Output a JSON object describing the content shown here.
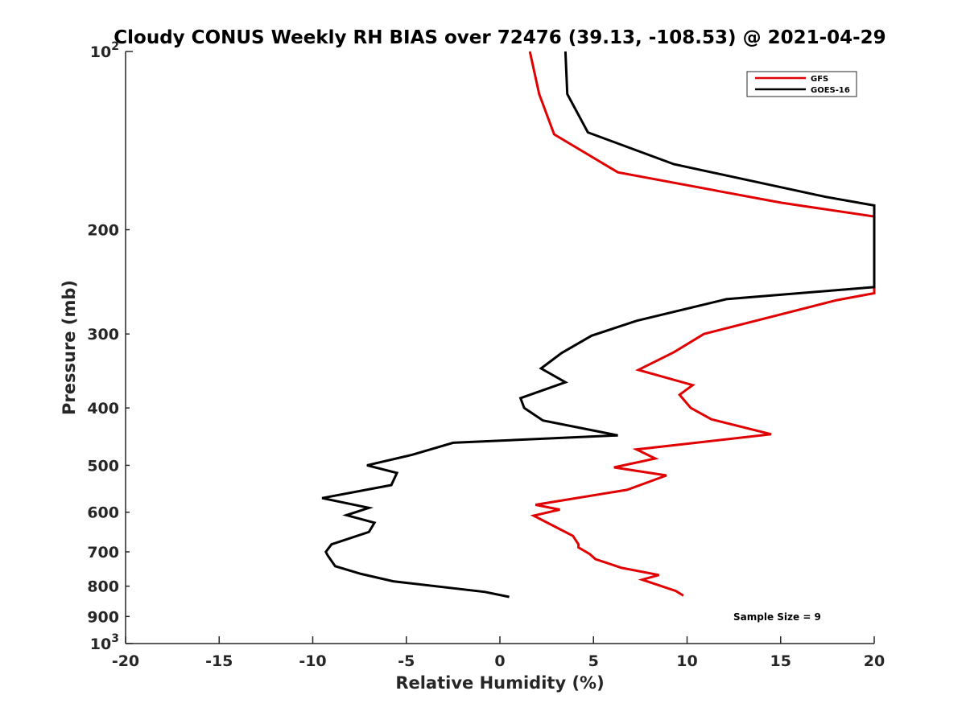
{
  "chart_data": {
    "type": "line",
    "title": "Cloudy CONUS Weekly RH BIAS over 72476 (39.13, -108.53) @ 2021-04-29",
    "xlabel": "Relative Humidity (%)",
    "ylabel": "Pressure (mb)",
    "xlim": [
      -20,
      20
    ],
    "ylim": [
      100,
      1000
    ],
    "y_scale": "log",
    "y_reversed": true,
    "grid": false,
    "legend_position": "top-right",
    "x_ticks": [
      "-20",
      "-15",
      "-10",
      "-5",
      "0",
      "5",
      "10",
      "15",
      "20"
    ],
    "y_ticks": [
      {
        "value": 100,
        "base": "10",
        "exp": "2"
      },
      {
        "value": 200,
        "label": "200"
      },
      {
        "value": 300,
        "label": "300"
      },
      {
        "value": 400,
        "label": "400"
      },
      {
        "value": 500,
        "label": "500"
      },
      {
        "value": 600,
        "label": "600"
      },
      {
        "value": 700,
        "label": "700"
      },
      {
        "value": 800,
        "label": "800"
      },
      {
        "value": 900,
        "label": "900"
      },
      {
        "value": 1000,
        "base": "10",
        "exp": "3"
      }
    ],
    "annotation": "Sample Size = 9",
    "series": [
      {
        "name": "GFS",
        "color": "#e00000",
        "points": [
          [
            1.6,
            100
          ],
          [
            2.1,
            118
          ],
          [
            2.9,
            138
          ],
          [
            6.3,
            160
          ],
          [
            15.0,
            180
          ],
          [
            20.0,
            190
          ],
          [
            20.0,
            256
          ],
          [
            18.0,
            263
          ],
          [
            10.9,
            300
          ],
          [
            9.3,
            322
          ],
          [
            7.4,
            345
          ],
          [
            10.3,
            366
          ],
          [
            9.6,
            380
          ],
          [
            10.2,
            400
          ],
          [
            11.3,
            418
          ],
          [
            14.5,
            443
          ],
          [
            7.3,
            470
          ],
          [
            8.3,
            487
          ],
          [
            6.1,
            504
          ],
          [
            8.9,
            520
          ],
          [
            6.8,
            550
          ],
          [
            1.9,
            583
          ],
          [
            3.2,
            594
          ],
          [
            1.8,
            608
          ],
          [
            3.9,
            658
          ],
          [
            4.2,
            680
          ],
          [
            4.2,
            688
          ],
          [
            4.8,
            706
          ],
          [
            5.1,
            720
          ],
          [
            6.5,
            745
          ],
          [
            8.5,
            766
          ],
          [
            7.6,
            780
          ],
          [
            9.4,
            815
          ],
          [
            9.8,
            830
          ]
        ]
      },
      {
        "name": "GOES-16",
        "color": "#000000",
        "points": [
          [
            3.5,
            100
          ],
          [
            3.6,
            118
          ],
          [
            4.7,
            137
          ],
          [
            9.3,
            155
          ],
          [
            17.4,
            176
          ],
          [
            20.0,
            182
          ],
          [
            20.0,
            250
          ],
          [
            12.1,
            262
          ],
          [
            7.3,
            285
          ],
          [
            4.9,
            302
          ],
          [
            3.3,
            323
          ],
          [
            2.2,
            343
          ],
          [
            3.5,
            362
          ],
          [
            1.1,
            385
          ],
          [
            1.3,
            400
          ],
          [
            2.3,
            420
          ],
          [
            6.3,
            445
          ],
          [
            -2.5,
            458
          ],
          [
            -4.7,
            480
          ],
          [
            -7.1,
            500
          ],
          [
            -5.5,
            515
          ],
          [
            -5.8,
            540
          ],
          [
            -9.5,
            568
          ],
          [
            -7.0,
            590
          ],
          [
            -8.2,
            607
          ],
          [
            -6.7,
            625
          ],
          [
            -7.0,
            648
          ],
          [
            -9.0,
            680
          ],
          [
            -9.3,
            700
          ],
          [
            -9.2,
            710
          ],
          [
            -8.8,
            740
          ],
          [
            -7.4,
            763
          ],
          [
            -5.7,
            785
          ],
          [
            -0.8,
            818
          ],
          [
            0.5,
            834
          ]
        ]
      }
    ]
  }
}
